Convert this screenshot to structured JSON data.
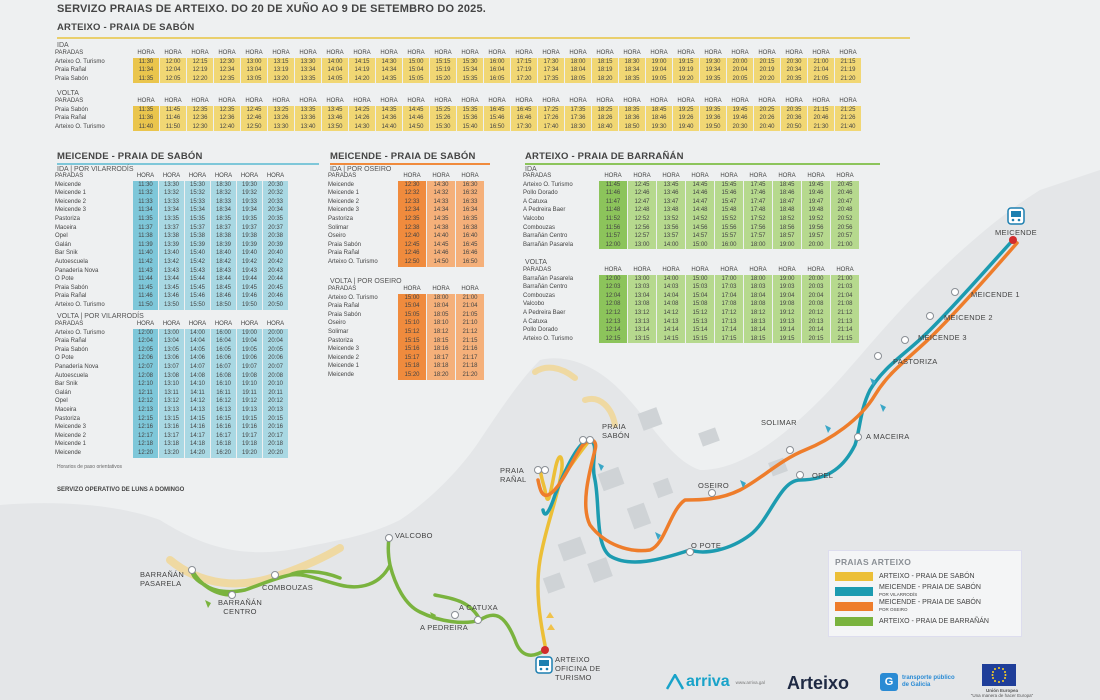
{
  "header": {
    "title": "SERVIZO PRAIAS DE ARTEIXO. DO 20 DE XUÑO AO 9 DE SETEMBRO DO 2025.",
    "section_main": "ARTEIXO - PRAIA DE SABÓN"
  },
  "col_header": "HORA",
  "stops_header": "PARADAS",
  "colors": {
    "yellow": "#f1d774",
    "yellow_head": "#eac54d",
    "blue": "#a9d8e3",
    "blue_head": "#7ec7d9",
    "orange": "#f5b07a",
    "orange_head": "#f08b3d",
    "green": "#b6d98e",
    "green_head": "#8cc45b",
    "route_yellow": "#ecbf37",
    "route_blue": "#1c9bb0",
    "route_orange": "#ee7d2b",
    "route_green": "#7ab33e"
  },
  "sabon": {
    "ida_label": "IDA",
    "ida_stops": [
      "Arteixo O. Turismo",
      "Praia Rañal",
      "Praia Sabón"
    ],
    "ida_times": [
      [
        "11:30",
        "12:00",
        "12:15",
        "12:30",
        "13:00",
        "13:15",
        "13:30",
        "14:00",
        "14:15",
        "14:30",
        "15:00",
        "15:15",
        "15:30",
        "16:00",
        "17:15",
        "17:30",
        "18:00",
        "18:15",
        "18:30",
        "19:00",
        "19:15",
        "19:30",
        "20:00",
        "20:15",
        "20:30",
        "21:00",
        "21:15"
      ],
      [
        "11:34",
        "12:04",
        "12:19",
        "12:34",
        "13:04",
        "13:19",
        "13:34",
        "14:04",
        "14:19",
        "14:34",
        "15:04",
        "15:19",
        "15:34",
        "16:04",
        "17:19",
        "17:34",
        "18:04",
        "18:19",
        "18:34",
        "19:04",
        "19:19",
        "19:34",
        "20:04",
        "20:19",
        "20:34",
        "21:04",
        "21:19"
      ],
      [
        "11:35",
        "12:05",
        "12:20",
        "12:35",
        "13:05",
        "13:20",
        "13:35",
        "14:05",
        "14:20",
        "14:35",
        "15:05",
        "15:20",
        "15:35",
        "16:05",
        "17:20",
        "17:35",
        "18:05",
        "18:20",
        "18:35",
        "19:05",
        "19:20",
        "19:35",
        "20:05",
        "20:20",
        "20:35",
        "21:05",
        "21:20"
      ]
    ],
    "volta_label": "VOLTA",
    "volta_stops": [
      "Praia Sabón",
      "Praia Rañal",
      "Arteixo O. Turismo"
    ],
    "volta_times": [
      [
        "11:35",
        "11:45",
        "12:35",
        "12:35",
        "12:45",
        "13:25",
        "13:35",
        "13:45",
        "14:25",
        "14:35",
        "14:45",
        "15:25",
        "15:35",
        "16:45",
        "16:45",
        "17:25",
        "17:35",
        "18:25",
        "18:35",
        "18:45",
        "19:25",
        "19:35",
        "19:45",
        "20:25",
        "20:35",
        "21:15",
        "21:25"
      ],
      [
        "11:36",
        "11:46",
        "12:36",
        "12:36",
        "12:46",
        "13:26",
        "13:36",
        "13:46",
        "14:26",
        "14:36",
        "14:46",
        "15:26",
        "15:36",
        "15:46",
        "16:46",
        "17:26",
        "17:36",
        "18:26",
        "18:36",
        "18:46",
        "19:26",
        "19:36",
        "19:46",
        "20:26",
        "20:36",
        "20:46",
        "21:26"
      ],
      [
        "11:40",
        "11:50",
        "12:30",
        "12:40",
        "12:50",
        "13:30",
        "13:40",
        "13:50",
        "14:30",
        "14:40",
        "14:50",
        "15:30",
        "15:40",
        "16:50",
        "17:30",
        "17:40",
        "18:30",
        "18:40",
        "18:50",
        "19:30",
        "19:40",
        "19:50",
        "20:30",
        "20:40",
        "20:50",
        "21:30",
        "21:40"
      ]
    ]
  },
  "meicende_vilarrodis": {
    "title": "MEICENDE - PRAIA DE SABÓN",
    "ida_label": "IDA | POR VILARRODÍS",
    "ida_stops": [
      "Meicende",
      "Meicende 1",
      "Meicende 2",
      "Meicende 3",
      "Pastoriza",
      "Maceira",
      "Opel",
      "Galán",
      "Bar Snik",
      "Autoescuela",
      "Panadería Nova",
      "O Pote",
      "Praia Sabón",
      "Praia Rañal",
      "Arteixo O. Turismo"
    ],
    "ida_times": [
      [
        "11:30",
        "13:30",
        "15:30",
        "18:30",
        "19:30",
        "20:30"
      ],
      [
        "11:32",
        "13:32",
        "15:32",
        "18:32",
        "19:32",
        "20:32"
      ],
      [
        "11:33",
        "13:33",
        "15:33",
        "18:33",
        "19:33",
        "20:33"
      ],
      [
        "11:34",
        "13:34",
        "15:34",
        "18:34",
        "19:34",
        "20:34"
      ],
      [
        "11:35",
        "13:35",
        "15:35",
        "18:35",
        "19:35",
        "20:35"
      ],
      [
        "11:37",
        "13:37",
        "15:37",
        "18:37",
        "19:37",
        "20:37"
      ],
      [
        "11:38",
        "13:38",
        "15:38",
        "18:38",
        "19:38",
        "20:38"
      ],
      [
        "11:39",
        "13:39",
        "15:39",
        "18:39",
        "19:39",
        "20:39"
      ],
      [
        "11:40",
        "13:40",
        "15:40",
        "18:40",
        "19:40",
        "20:40"
      ],
      [
        "11:42",
        "13:42",
        "15:42",
        "18:42",
        "19:42",
        "20:42"
      ],
      [
        "11:43",
        "13:43",
        "15:43",
        "18:43",
        "19:43",
        "20:43"
      ],
      [
        "11:44",
        "13:44",
        "15:44",
        "18:44",
        "19:44",
        "20:44"
      ],
      [
        "11:45",
        "13:45",
        "15:45",
        "18:45",
        "19:45",
        "20:45"
      ],
      [
        "11:46",
        "13:46",
        "15:46",
        "18:46",
        "19:46",
        "20:46"
      ],
      [
        "11:50",
        "13:50",
        "15:50",
        "18:50",
        "19:50",
        "20:50"
      ]
    ],
    "volta_label": "VOLTA | POR VILARRODÍS",
    "volta_stops": [
      "Arteixo O. Turismo",
      "Praia Rañal",
      "Praia Sabón",
      "O Pote",
      "Panadería Nova",
      "Autoescuela",
      "Bar Snik",
      "Galán",
      "Opel",
      "Maceira",
      "Pastoriza",
      "Meicende 3",
      "Meicende 2",
      "Meicende 1",
      "Meicende"
    ],
    "volta_times": [
      [
        "12:00",
        "13:00",
        "14:00",
        "16:00",
        "19:00",
        "20:00"
      ],
      [
        "12:04",
        "13:04",
        "14:04",
        "16:04",
        "19:04",
        "20:04"
      ],
      [
        "12:05",
        "13:05",
        "14:05",
        "16:05",
        "19:05",
        "20:05"
      ],
      [
        "12:06",
        "13:06",
        "14:06",
        "16:06",
        "19:06",
        "20:06"
      ],
      [
        "12:07",
        "13:07",
        "14:07",
        "16:07",
        "19:07",
        "20:07"
      ],
      [
        "12:08",
        "13:08",
        "14:08",
        "16:08",
        "19:08",
        "20:08"
      ],
      [
        "12:10",
        "13:10",
        "14:10",
        "16:10",
        "19:10",
        "20:10"
      ],
      [
        "12:11",
        "13:11",
        "14:11",
        "16:11",
        "19:11",
        "20:11"
      ],
      [
        "12:12",
        "13:12",
        "14:12",
        "16:12",
        "19:12",
        "20:12"
      ],
      [
        "12:13",
        "13:13",
        "14:13",
        "16:13",
        "19:13",
        "20:13"
      ],
      [
        "12:15",
        "13:15",
        "14:15",
        "16:15",
        "19:15",
        "20:15"
      ],
      [
        "12:16",
        "13:16",
        "14:16",
        "16:16",
        "19:16",
        "20:16"
      ],
      [
        "12:17",
        "13:17",
        "14:17",
        "16:17",
        "19:17",
        "20:17"
      ],
      [
        "12:18",
        "13:18",
        "14:18",
        "16:18",
        "19:18",
        "20:18"
      ],
      [
        "12:20",
        "13:20",
        "14:20",
        "16:20",
        "19:20",
        "20:20"
      ]
    ],
    "note": "Horarios de paso orientativos"
  },
  "service_note": "SERVIZO OPERATIVO DE LUNS A DOMINGO",
  "meicende_oseiro": {
    "title": "MEICENDE - PRAIA DE SABÓN",
    "ida_label": "IDA | POR OSEIRO",
    "ida_stops": [
      "Meicende",
      "Meicende 1",
      "Meicende 2",
      "Meicende 3",
      "Pastoriza",
      "Solimar",
      "Oseiro",
      "Praia Sabón",
      "Praia Rañal",
      "Arteixo O. Turismo"
    ],
    "ida_times": [
      [
        "12:30",
        "14:30",
        "16:30"
      ],
      [
        "12:32",
        "14:32",
        "16:32"
      ],
      [
        "12:33",
        "14:33",
        "16:33"
      ],
      [
        "12:34",
        "14:34",
        "16:34"
      ],
      [
        "12:35",
        "14:35",
        "16:35"
      ],
      [
        "12:38",
        "14:38",
        "16:38"
      ],
      [
        "12:40",
        "14:40",
        "16:40"
      ],
      [
        "12:45",
        "14:45",
        "16:45"
      ],
      [
        "12:46",
        "14:46",
        "16:46"
      ],
      [
        "12:50",
        "14:50",
        "16:50"
      ]
    ],
    "volta_label": "VOLTA | POR OSEIRO",
    "volta_stops": [
      "Arteixo O. Turismo",
      "Praia Rañal",
      "Praia Sabón",
      "Oseiro",
      "Solimar",
      "Pastoriza",
      "Meicende 3",
      "Meicende 2",
      "Meicende 1",
      "Meicende"
    ],
    "volta_times": [
      [
        "15:00",
        "18:00",
        "21:00"
      ],
      [
        "15:04",
        "18:04",
        "21:04"
      ],
      [
        "15:05",
        "18:05",
        "21:05"
      ],
      [
        "15:10",
        "18:10",
        "21:10"
      ],
      [
        "15:12",
        "18:12",
        "21:12"
      ],
      [
        "15:15",
        "18:15",
        "21:15"
      ],
      [
        "15:16",
        "18:16",
        "21:16"
      ],
      [
        "15:17",
        "18:17",
        "21:17"
      ],
      [
        "15:18",
        "18:18",
        "21:18"
      ],
      [
        "15:20",
        "18:20",
        "21:20"
      ]
    ]
  },
  "barranan": {
    "title": "ARTEIXO - PRAIA DE BARRAÑÁN",
    "ida_label": "IDA",
    "ida_stops": [
      "Arteixo O. Turismo",
      "Pollo Dorado",
      "A Catuxa",
      "A Pedreira Baer",
      "Valcobo",
      "Combouzas",
      "Barrañán Centro",
      "Barrañán Pasarela"
    ],
    "ida_times": [
      [
        "11:45",
        "12:45",
        "13:45",
        "14:45",
        "15:45",
        "17:45",
        "18:45",
        "19:45",
        "20:45"
      ],
      [
        "11:46",
        "12:46",
        "13:46",
        "14:46",
        "15:46",
        "17:46",
        "18:46",
        "19:46",
        "20:46"
      ],
      [
        "11:47",
        "12:47",
        "13:47",
        "14:47",
        "15:47",
        "17:47",
        "18:47",
        "19:47",
        "20:47"
      ],
      [
        "11:48",
        "12:48",
        "13:48",
        "14:48",
        "15:48",
        "17:48",
        "18:48",
        "19:48",
        "20:48"
      ],
      [
        "11:52",
        "12:52",
        "13:52",
        "14:52",
        "15:52",
        "17:52",
        "18:52",
        "19:52",
        "20:52"
      ],
      [
        "11:56",
        "12:56",
        "13:56",
        "14:56",
        "15:56",
        "17:56",
        "18:56",
        "19:56",
        "20:56"
      ],
      [
        "11:57",
        "12:57",
        "13:57",
        "14:57",
        "15:57",
        "17:57",
        "18:57",
        "19:57",
        "20:57"
      ],
      [
        "12:00",
        "13:00",
        "14:00",
        "15:00",
        "16:00",
        "18:00",
        "19:00",
        "20:00",
        "21:00"
      ]
    ],
    "volta_label": "VOLTA",
    "volta_stops": [
      "Barrañán Pasarela",
      "Barrañán Centro",
      "Combouzas",
      "Valcobo",
      "A Pedreira Baer",
      "A Catuxa",
      "Pollo Dorado",
      "Arteixo O. Turismo"
    ],
    "volta_times": [
      [
        "12:00",
        "13:00",
        "14:00",
        "15:00",
        "17:00",
        "18:00",
        "19:00",
        "20:00",
        "21:00"
      ],
      [
        "12:03",
        "13:03",
        "14:03",
        "15:03",
        "17:03",
        "18:03",
        "19:03",
        "20:03",
        "21:03"
      ],
      [
        "12:04",
        "13:04",
        "14:04",
        "15:04",
        "17:04",
        "18:04",
        "19:04",
        "20:04",
        "21:04"
      ],
      [
        "12:08",
        "13:08",
        "14:08",
        "15:08",
        "17:08",
        "18:08",
        "19:08",
        "20:08",
        "21:08"
      ],
      [
        "12:12",
        "13:12",
        "14:12",
        "15:12",
        "17:12",
        "18:12",
        "19:12",
        "20:12",
        "21:12"
      ],
      [
        "12:13",
        "13:13",
        "14:13",
        "15:13",
        "17:13",
        "18:13",
        "19:13",
        "20:13",
        "21:13"
      ],
      [
        "12:14",
        "13:14",
        "14:14",
        "15:14",
        "17:14",
        "18:14",
        "19:14",
        "20:14",
        "21:14"
      ],
      [
        "12:15",
        "13:15",
        "14:15",
        "15:15",
        "17:15",
        "18:15",
        "19:15",
        "20:15",
        "21:15"
      ]
    ]
  },
  "map_labels": {
    "meicende": "MEICENDE",
    "meicende1": "MEICENDE 1",
    "meicende2": "MEICENDE 2",
    "meicende3": "MEICENDE 3",
    "pastoriza": "PASTORIZA",
    "solimar": "SOLIMAR",
    "maceira": "A MACEIRA",
    "opel": "OPEL",
    "oseiro": "OSEIRO",
    "opote": "O POTE",
    "praia_sabon_1": "PRAIA",
    "praia_sabon_2": "SABÓN",
    "praia_ranal_1": "PRAIA",
    "praia_ranal_2": "RAÑAL",
    "valcobo": "VALCOBO",
    "barranan_pasarela_1": "BARRAÑÁN",
    "barranan_pasarela_2": "PASARELA",
    "barranan_centro_1": "BARRAÑÁN",
    "barranan_centro_2": "CENTRO",
    "combouzas": "COMBOUZAS",
    "catuxa": "A CATUXA",
    "pedreira": "A PEDREIRA",
    "arteixo_1": "ARTEIXO",
    "arteixo_2": "OFICINA DE",
    "arteixo_3": "TURISMO"
  },
  "legend": {
    "title": "PRAIAS ARTEIXO",
    "items": [
      {
        "label": "ARTEIXO - PRAIA DE SABÓN",
        "sub": "",
        "color": "#ecbf37"
      },
      {
        "label": "MEICENDE - PRAIA DE SABÓN",
        "sub": "POR VILARRODÍS",
        "color": "#1c9bb0"
      },
      {
        "label": "MEICENDE - PRAIA DE SABÓN",
        "sub": "POR OSEIRO",
        "color": "#ee7d2b"
      },
      {
        "label": "ARTEIXO - PRAIA DE BARRAÑÁN",
        "sub": "",
        "color": "#7ab33e"
      }
    ]
  },
  "footer": {
    "arriva": "arriva",
    "arriva_url": "www.arriva.gal",
    "arteixo": "Arteixo",
    "xunta_1": "transporte público",
    "xunta_2": "de Galicia",
    "eu_1": "Unión Europea",
    "eu_2": "\"Una manera de hacer Europa\""
  }
}
